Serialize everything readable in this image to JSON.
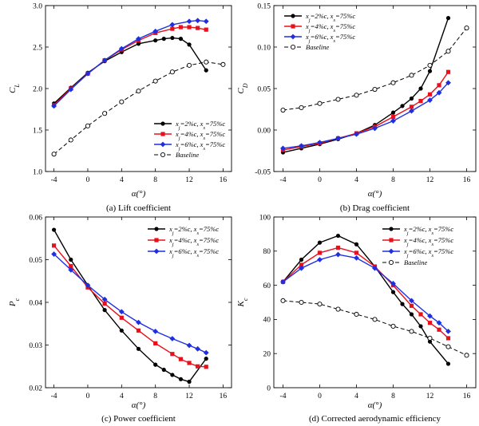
{
  "colors": {
    "s2": "#000000",
    "s4": "#e8101a",
    "s6": "#1f2fe0",
    "baseline": "#000000"
  },
  "legend_labels": {
    "s2": "x_j=2%c, x_s=75%c",
    "s4": "x_j=4%c, x_s=75%c",
    "s6": "x_j=6%c, x_s=75%c",
    "baseline": "Baseline"
  },
  "chart_data": [
    {
      "type": "line",
      "id": "a",
      "caption": "(a) Lift coefficient",
      "ylabel": "C_L",
      "xlabel": "α(°)",
      "xlim": [
        -5,
        17
      ],
      "ylim": [
        1.0,
        3.0
      ],
      "xticks": [
        -4,
        0,
        4,
        8,
        12,
        16
      ],
      "yticks": [
        1.0,
        1.5,
        2.0,
        2.5,
        3.0
      ],
      "ytick_labels": [
        "1.0",
        "1.5",
        "2.0",
        "2.5",
        "3.0"
      ],
      "legend_position": "bottom-right",
      "series": [
        {
          "key": "s2",
          "x": [
            -4,
            -2,
            0,
            2,
            4,
            6,
            8,
            9,
            10,
            11,
            12,
            14
          ],
          "y": [
            1.82,
            2.01,
            2.19,
            2.33,
            2.44,
            2.54,
            2.58,
            2.6,
            2.61,
            2.6,
            2.53,
            2.22
          ]
        },
        {
          "key": "s4",
          "x": [
            -4,
            -2,
            0,
            2,
            4,
            6,
            8,
            10,
            11,
            12,
            13,
            14
          ],
          "y": [
            1.8,
            2.0,
            2.18,
            2.34,
            2.47,
            2.58,
            2.67,
            2.72,
            2.74,
            2.74,
            2.73,
            2.71
          ]
        },
        {
          "key": "s6",
          "x": [
            -4,
            -2,
            0,
            2,
            4,
            6,
            8,
            10,
            12,
            13,
            14
          ],
          "y": [
            1.79,
            1.99,
            2.18,
            2.34,
            2.48,
            2.6,
            2.69,
            2.77,
            2.81,
            2.82,
            2.81
          ]
        },
        {
          "key": "baseline",
          "x": [
            -4,
            -2,
            0,
            2,
            4,
            6,
            8,
            10,
            12,
            14,
            16
          ],
          "y": [
            1.21,
            1.38,
            1.55,
            1.7,
            1.84,
            1.97,
            2.09,
            2.2,
            2.28,
            2.32,
            2.29
          ]
        }
      ]
    },
    {
      "type": "line",
      "id": "b",
      "caption": "(b) Drag coefficient",
      "ylabel": "C_D",
      "xlabel": "α(°)",
      "xlim": [
        -5,
        17
      ],
      "ylim": [
        -0.05,
        0.15
      ],
      "xticks": [
        -4,
        0,
        4,
        8,
        12,
        16
      ],
      "yticks": [
        -0.05,
        0.0,
        0.05,
        0.1,
        0.15
      ],
      "ytick_labels": [
        "-0.05",
        "0.00",
        "0.05",
        "0.10",
        "0.15"
      ],
      "legend_position": "top-left",
      "series": [
        {
          "key": "s2",
          "x": [
            -4,
            -2,
            0,
            2,
            4,
            6,
            8,
            9,
            10,
            11,
            12,
            14
          ],
          "y": [
            -0.027,
            -0.022,
            -0.017,
            -0.011,
            -0.004,
            0.006,
            0.021,
            0.029,
            0.038,
            0.05,
            0.071,
            0.135
          ]
        },
        {
          "key": "s4",
          "x": [
            -4,
            -2,
            0,
            2,
            4,
            6,
            8,
            10,
            11,
            12,
            13,
            14
          ],
          "y": [
            -0.024,
            -0.02,
            -0.016,
            -0.01,
            -0.004,
            0.004,
            0.016,
            0.028,
            0.035,
            0.043,
            0.054,
            0.07
          ]
        },
        {
          "key": "s6",
          "x": [
            -4,
            -2,
            0,
            2,
            4,
            6,
            8,
            10,
            12,
            13,
            14
          ],
          "y": [
            -0.022,
            -0.019,
            -0.015,
            -0.01,
            -0.005,
            0.002,
            0.011,
            0.023,
            0.036,
            0.045,
            0.057
          ]
        },
        {
          "key": "baseline",
          "x": [
            -4,
            -2,
            0,
            2,
            4,
            6,
            8,
            10,
            12,
            14,
            16
          ],
          "y": [
            0.024,
            0.027,
            0.032,
            0.037,
            0.042,
            0.049,
            0.057,
            0.066,
            0.078,
            0.095,
            0.123
          ]
        }
      ]
    },
    {
      "type": "line",
      "id": "c",
      "caption": "(c) Power coefficient",
      "ylabel": "P_c",
      "xlabel": "α(°)",
      "xlim": [
        -5,
        17
      ],
      "ylim": [
        0.02,
        0.06
      ],
      "xticks": [
        -4,
        0,
        4,
        8,
        12,
        16
      ],
      "yticks": [
        0.02,
        0.03,
        0.04,
        0.05,
        0.06
      ],
      "ytick_labels": [
        "0.02",
        "0.03",
        "0.04",
        "0.05",
        "0.06"
      ],
      "legend_position": "top-right",
      "series": [
        {
          "key": "s2",
          "x": [
            -4,
            -2,
            0,
            2,
            4,
            6,
            8,
            9,
            10,
            11,
            12,
            14
          ],
          "y": [
            0.057,
            0.05,
            0.044,
            0.0382,
            0.0334,
            0.0291,
            0.0254,
            0.0242,
            0.023,
            0.022,
            0.0214,
            0.0268
          ]
        },
        {
          "key": "s4",
          "x": [
            -4,
            -2,
            0,
            2,
            4,
            6,
            8,
            10,
            11,
            12,
            13,
            14
          ],
          "y": [
            0.0533,
            0.0485,
            0.0435,
            0.0397,
            0.0364,
            0.0334,
            0.0304,
            0.0279,
            0.0267,
            0.0258,
            0.025,
            0.0249
          ]
        },
        {
          "key": "s6",
          "x": [
            -4,
            -2,
            0,
            2,
            4,
            6,
            8,
            10,
            12,
            13,
            14
          ],
          "y": [
            0.0513,
            0.0476,
            0.044,
            0.0407,
            0.0378,
            0.0353,
            0.0332,
            0.0315,
            0.0299,
            0.0291,
            0.0282
          ]
        }
      ]
    },
    {
      "type": "line",
      "id": "d",
      "caption": "(d) Corrected aerodynamic efficiency",
      "ylabel": "K_c",
      "xlabel": "α(°)",
      "xlim": [
        -5,
        17
      ],
      "ylim": [
        0,
        100
      ],
      "xticks": [
        -4,
        0,
        4,
        8,
        12,
        16
      ],
      "yticks": [
        0,
        20,
        40,
        60,
        80,
        100
      ],
      "ytick_labels": [
        "0",
        "20",
        "40",
        "60",
        "80",
        "100"
      ],
      "legend_position": "top-right",
      "series": [
        {
          "key": "s2",
          "x": [
            -4,
            -2,
            0,
            2,
            4,
            6,
            8,
            9,
            10,
            11,
            12,
            14
          ],
          "y": [
            62,
            75,
            85,
            89,
            84,
            71,
            56,
            49,
            43,
            36,
            27,
            14
          ]
        },
        {
          "key": "s4",
          "x": [
            -4,
            -2,
            0,
            2,
            4,
            6,
            8,
            10,
            11,
            12,
            13,
            14
          ],
          "y": [
            62,
            72,
            79,
            82,
            79,
            71,
            60,
            48,
            43,
            38,
            34,
            29
          ]
        },
        {
          "key": "s6",
          "x": [
            -4,
            -2,
            0,
            2,
            4,
            6,
            8,
            10,
            12,
            13,
            14
          ],
          "y": [
            62,
            70,
            75,
            78,
            76,
            70,
            61,
            51,
            42,
            38,
            33
          ]
        },
        {
          "key": "baseline",
          "x": [
            -4,
            -2,
            0,
            2,
            4,
            6,
            8,
            10,
            12,
            14,
            16
          ],
          "y": [
            51,
            50,
            49,
            46,
            43,
            40,
            36,
            33,
            29,
            24,
            19
          ]
        }
      ]
    }
  ]
}
